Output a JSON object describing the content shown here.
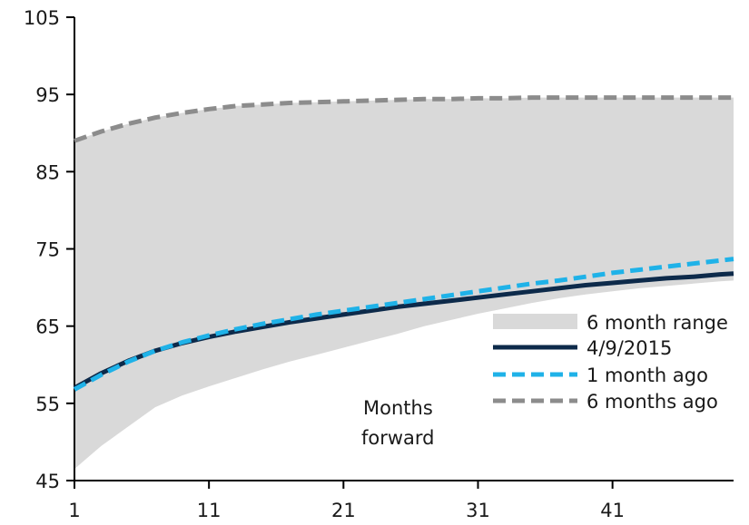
{
  "chart_data": {
    "type": "line",
    "title": "",
    "xlabel": "",
    "ylabel": "",
    "x_ticks": [
      1,
      11,
      21,
      31,
      41
    ],
    "y_ticks": [
      45,
      55,
      65,
      75,
      85,
      95,
      105
    ],
    "xlim": [
      1,
      50
    ],
    "ylim": [
      45,
      105
    ],
    "grid": false,
    "legend_position": "bottom-right",
    "annotation": [
      "Months",
      "forward"
    ],
    "colors": {
      "range_fill": "#d9d9d9",
      "current": "#0d2a4a",
      "one_month": "#1fb2e8",
      "six_months": "#8c8c8c",
      "axis": "#000000"
    },
    "band": {
      "name": "6 month range",
      "x": [
        1,
        3,
        5,
        7,
        9,
        11,
        13,
        15,
        17,
        19,
        21,
        23,
        25,
        27,
        29,
        31,
        33,
        35,
        37,
        39,
        41,
        43,
        45,
        47,
        49,
        50
      ],
      "lower": [
        46.5,
        49.5,
        52,
        54.5,
        56,
        57.2,
        58.3,
        59.4,
        60.4,
        61.3,
        62.2,
        63.1,
        64.0,
        65.0,
        65.8,
        66.6,
        67.3,
        68.0,
        68.6,
        69.1,
        69.5,
        69.9,
        70.2,
        70.5,
        70.8,
        70.9
      ],
      "upper": [
        89.0,
        90.2,
        91.2,
        92.0,
        92.6,
        93.1,
        93.5,
        93.7,
        93.9,
        94.0,
        94.1,
        94.2,
        94.3,
        94.4,
        94.4,
        94.5,
        94.5,
        94.6,
        94.6,
        94.6,
        94.6,
        94.6,
        94.6,
        94.6,
        94.6,
        94.6
      ]
    },
    "series": [
      {
        "name": "4/9/2015",
        "style": "solid",
        "x": [
          1,
          3,
          5,
          7,
          9,
          11,
          13,
          15,
          17,
          19,
          21,
          23,
          25,
          27,
          29,
          31,
          33,
          35,
          37,
          39,
          41,
          43,
          45,
          47,
          49,
          50
        ],
        "values": [
          57.0,
          58.9,
          60.5,
          61.8,
          62.8,
          63.6,
          64.3,
          64.9,
          65.5,
          66.0,
          66.5,
          67.0,
          67.5,
          67.9,
          68.3,
          68.7,
          69.1,
          69.5,
          69.9,
          70.3,
          70.6,
          70.9,
          71.2,
          71.4,
          71.7,
          71.8
        ]
      },
      {
        "name": "1 month ago",
        "style": "dashed",
        "x": [
          1,
          3,
          5,
          7,
          9,
          11,
          13,
          15,
          17,
          19,
          21,
          23,
          25,
          27,
          29,
          31,
          33,
          35,
          37,
          39,
          41,
          43,
          45,
          47,
          49,
          50
        ],
        "values": [
          56.8,
          58.7,
          60.4,
          61.8,
          62.9,
          63.8,
          64.6,
          65.3,
          65.9,
          66.5,
          67.0,
          67.5,
          68.0,
          68.5,
          69.0,
          69.5,
          70.0,
          70.5,
          70.9,
          71.4,
          71.9,
          72.3,
          72.7,
          73.1,
          73.5,
          73.7
        ]
      },
      {
        "name": "6 months ago",
        "style": "dashed",
        "x": [
          1,
          3,
          5,
          7,
          9,
          11,
          13,
          15,
          17,
          19,
          21,
          23,
          25,
          27,
          29,
          31,
          33,
          35,
          37,
          39,
          41,
          43,
          45,
          47,
          49,
          50
        ],
        "values": [
          89.0,
          90.2,
          91.2,
          92.0,
          92.6,
          93.1,
          93.5,
          93.7,
          93.9,
          94.0,
          94.1,
          94.2,
          94.3,
          94.4,
          94.4,
          94.5,
          94.5,
          94.6,
          94.6,
          94.6,
          94.6,
          94.6,
          94.6,
          94.6,
          94.6,
          94.6
        ]
      }
    ]
  }
}
